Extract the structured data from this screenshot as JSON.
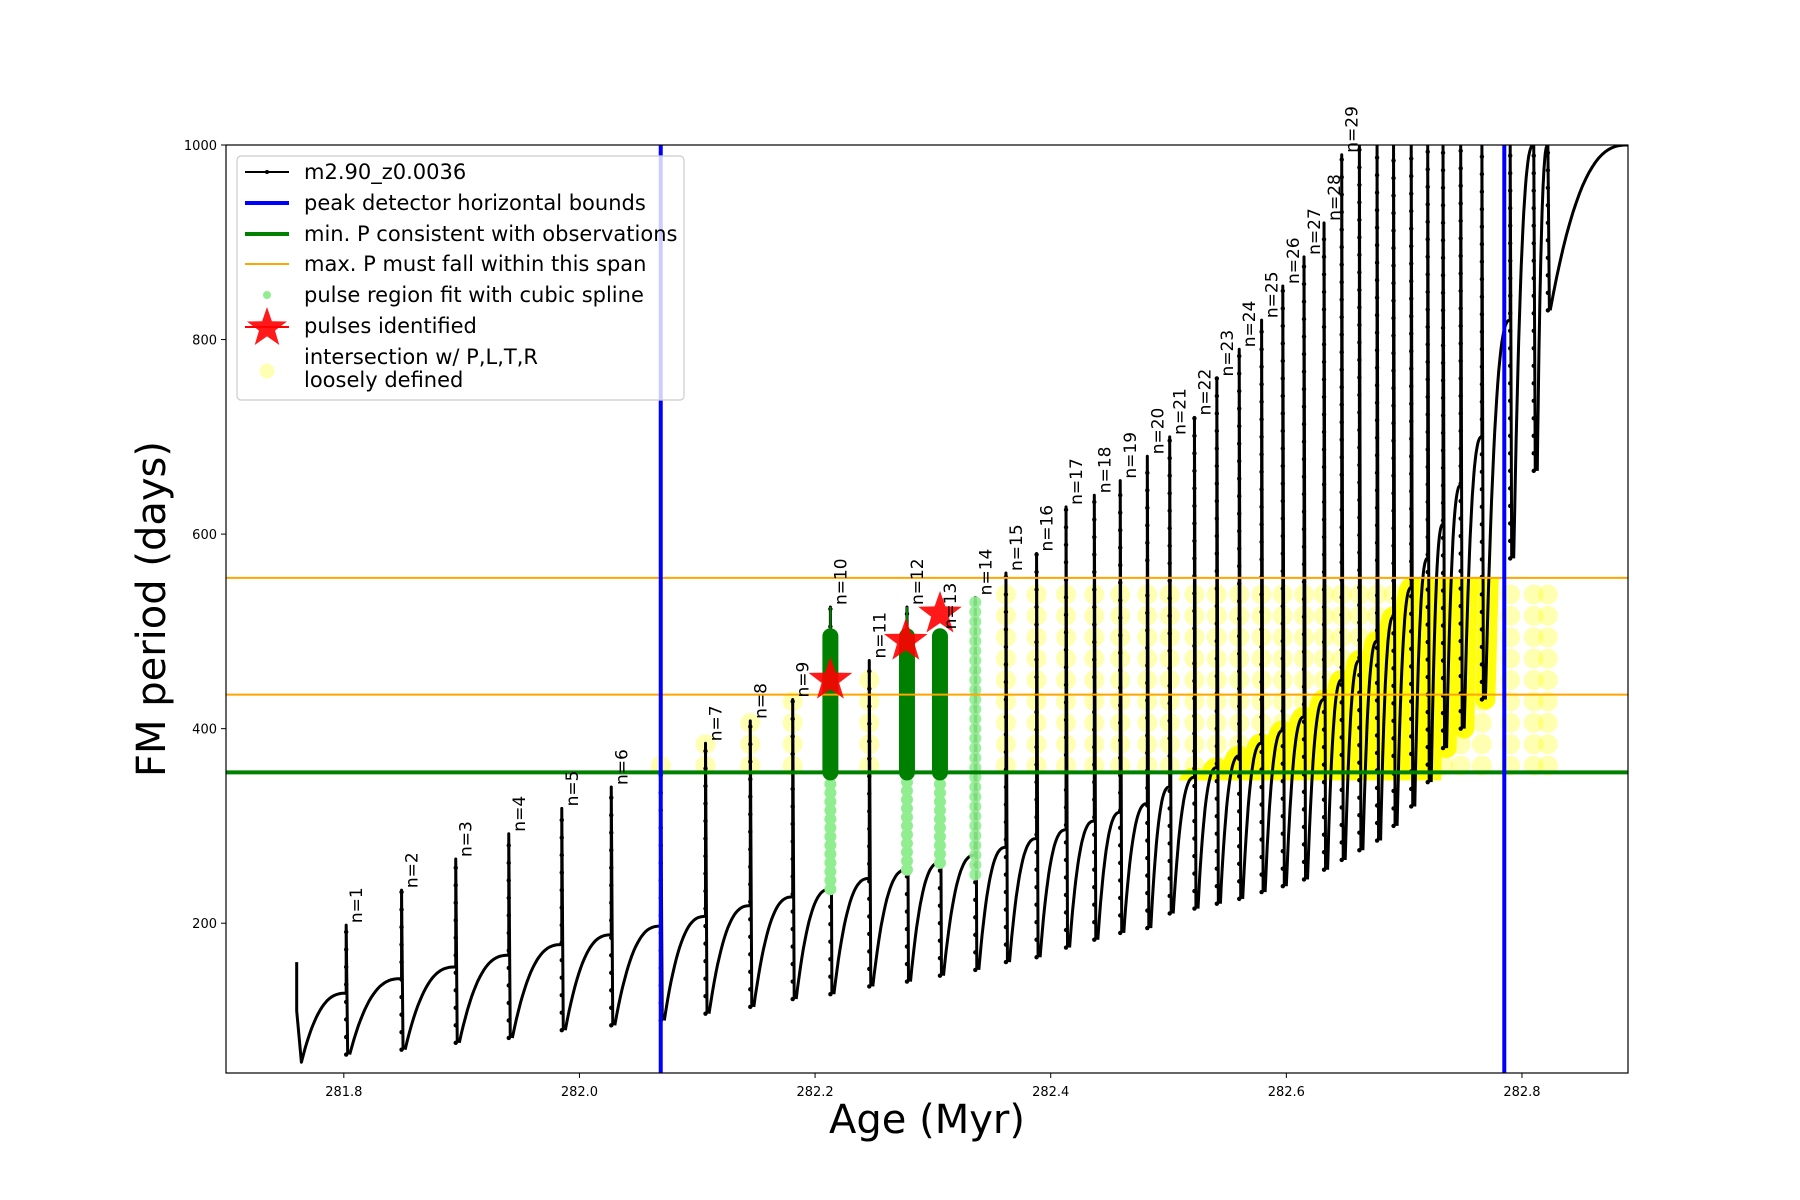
{
  "chart_data": {
    "type": "line",
    "title": "",
    "xlabel": "Age (Myr)",
    "ylabel": "FM period (days)",
    "xlim": [
      281.7,
      282.89
    ],
    "ylim": [
      46,
      1000
    ],
    "xticks": [
      281.8,
      282.0,
      282.2,
      282.4,
      282.6,
      282.8
    ],
    "xtick_labels": [
      "281.8",
      "282.0",
      "282.2",
      "282.4",
      "282.6",
      "282.8"
    ],
    "yticks": [
      200,
      400,
      600,
      800,
      1000
    ],
    "ytick_labels": [
      "200",
      "400",
      "600",
      "800",
      "1000"
    ],
    "grid": false,
    "legend_placement": "upper-left",
    "legend": [
      {
        "label": "m2.90_z0.0036",
        "kind": "line-marker",
        "color": "#000000"
      },
      {
        "label": "peak detector horizontal bounds",
        "kind": "line",
        "color": "#0000ff"
      },
      {
        "label": "min. P consistent with observations",
        "kind": "line",
        "color": "#008000"
      },
      {
        "label": "max. P must fall within this span",
        "kind": "thin-line",
        "color": "#ffa500"
      },
      {
        "label": "pulse region fit with cubic spline",
        "kind": "dot",
        "color": "#90ee90"
      },
      {
        "label": "pulses identified",
        "kind": "star",
        "color": "#ff0000"
      },
      {
        "label": "intersection w/ P,L,T,R",
        "label2": "loosely defined",
        "kind": "circle",
        "color": "#ffffa0"
      }
    ],
    "series_name": "m2.90_z0.0036",
    "start": {
      "age": 281.76,
      "period_top": 160,
      "period_min": 57
    },
    "pulses": [
      {
        "label": "n=1",
        "age": 281.802,
        "peak": 198,
        "pre": 128,
        "min": 65
      },
      {
        "label": "n=2",
        "age": 281.849,
        "peak": 234,
        "pre": 143,
        "min": 70
      },
      {
        "label": "n=3",
        "age": 281.895,
        "peak": 266,
        "pre": 155,
        "min": 77
      },
      {
        "label": "n=4",
        "age": 281.94,
        "peak": 292,
        "pre": 167,
        "min": 82
      },
      {
        "label": "n=5",
        "age": 281.985,
        "peak": 318,
        "pre": 178,
        "min": 90
      },
      {
        "label": "n=6",
        "age": 282.027,
        "peak": 340,
        "pre": 188,
        "min": 95
      },
      {
        "label": "",
        "age": 282.069,
        "peak": 362,
        "pre": 197,
        "min": 100
      },
      {
        "label": "n=7",
        "age": 282.107,
        "peak": 385,
        "pre": 207,
        "min": 107
      },
      {
        "label": "n=8",
        "age": 282.145,
        "peak": 408,
        "pre": 218,
        "min": 114
      },
      {
        "label": "n=9",
        "age": 282.181,
        "peak": 430,
        "pre": 227,
        "min": 122
      },
      {
        "label": "n=10",
        "age": 282.213,
        "peak": 525,
        "pre": 235,
        "min": 127,
        "fit": "green"
      },
      {
        "label": "n=11",
        "age": 282.246,
        "peak": 470,
        "pre": 246,
        "min": 135
      },
      {
        "label": "n=12",
        "age": 282.278,
        "peak": 525,
        "pre": 255,
        "min": 140,
        "fit": "green"
      },
      {
        "label": "n=13",
        "age": 282.306,
        "peak": 500,
        "pre": 262,
        "min": 146,
        "fit": "green"
      },
      {
        "label": "n=14",
        "age": 282.336,
        "peak": 535,
        "pre": 270,
        "min": 152,
        "fit": "light"
      },
      {
        "label": "n=15",
        "age": 282.362,
        "peak": 560,
        "pre": 278,
        "min": 160
      },
      {
        "label": "n=16",
        "age": 282.388,
        "peak": 580,
        "pre": 287,
        "min": 165
      },
      {
        "label": "n=17",
        "age": 282.413,
        "peak": 628,
        "pre": 296,
        "min": 175
      },
      {
        "label": "n=18",
        "age": 282.437,
        "peak": 640,
        "pre": 305,
        "min": 183
      },
      {
        "label": "n=19",
        "age": 282.459,
        "peak": 655,
        "pre": 314,
        "min": 190
      },
      {
        "label": "n=20",
        "age": 282.482,
        "peak": 680,
        "pre": 323,
        "min": 195
      },
      {
        "label": "n=21",
        "age": 282.501,
        "peak": 700,
        "pre": 340,
        "min": 210
      },
      {
        "label": "n=22",
        "age": 282.522,
        "peak": 720,
        "pre": 350,
        "min": 215
      },
      {
        "label": "n=23",
        "age": 282.541,
        "peak": 760,
        "pre": 360,
        "min": 220
      },
      {
        "label": "n=24",
        "age": 282.56,
        "peak": 790,
        "pre": 372,
        "min": 225
      },
      {
        "label": "n=25",
        "age": 282.579,
        "peak": 820,
        "pre": 385,
        "min": 232
      },
      {
        "label": "n=26",
        "age": 282.597,
        "peak": 855,
        "pre": 398,
        "min": 238
      },
      {
        "label": "n=27",
        "age": 282.615,
        "peak": 885,
        "pre": 412,
        "min": 245
      },
      {
        "label": "n=28",
        "age": 282.632,
        "peak": 920,
        "pre": 430,
        "min": 255
      },
      {
        "label": "n=29",
        "age": 282.647,
        "peak": 990,
        "pre": 450,
        "min": 265
      },
      {
        "label": "",
        "age": 282.662,
        "peak": 1000,
        "pre": 470,
        "min": 275
      },
      {
        "label": "",
        "age": 282.677,
        "peak": 1000,
        "pre": 490,
        "min": 285
      },
      {
        "label": "",
        "age": 282.691,
        "peak": 1000,
        "pre": 515,
        "min": 300
      },
      {
        "label": "",
        "age": 282.706,
        "peak": 1000,
        "pre": 545,
        "min": 320
      },
      {
        "label": "",
        "age": 282.72,
        "peak": 1000,
        "pre": 575,
        "min": 345
      },
      {
        "label": "",
        "age": 282.733,
        "peak": 1000,
        "pre": 610,
        "min": 380
      },
      {
        "label": "",
        "age": 282.748,
        "peak": 1000,
        "pre": 650,
        "min": 400
      },
      {
        "label": "",
        "age": 282.766,
        "peak": 1000,
        "pre": 700,
        "min": 430
      },
      {
        "label": "",
        "age": 282.79,
        "peak": 1000,
        "pre": 820,
        "min": 575
      },
      {
        "label": "",
        "age": 282.81,
        "peak": 1000,
        "pre": 1000,
        "min": 665
      },
      {
        "label": "",
        "age": 282.822,
        "peak": 1000,
        "pre": 1000,
        "min": 830
      }
    ],
    "vlines": [
      {
        "x": 282.069,
        "color": "#0000ff"
      },
      {
        "x": 282.785,
        "color": "#0000ff"
      }
    ],
    "hlines": [
      {
        "y": 355,
        "color": "#008000",
        "kind": "min-P"
      },
      {
        "y": 435,
        "color": "#ffa500",
        "kind": "max-P-span"
      },
      {
        "y": 555,
        "color": "#ffa500",
        "kind": "max-P-span"
      }
    ],
    "stars": [
      {
        "age": 282.213,
        "period": 450
      },
      {
        "age": 282.277,
        "period": 490
      },
      {
        "age": 282.306,
        "period": 518
      }
    ]
  }
}
